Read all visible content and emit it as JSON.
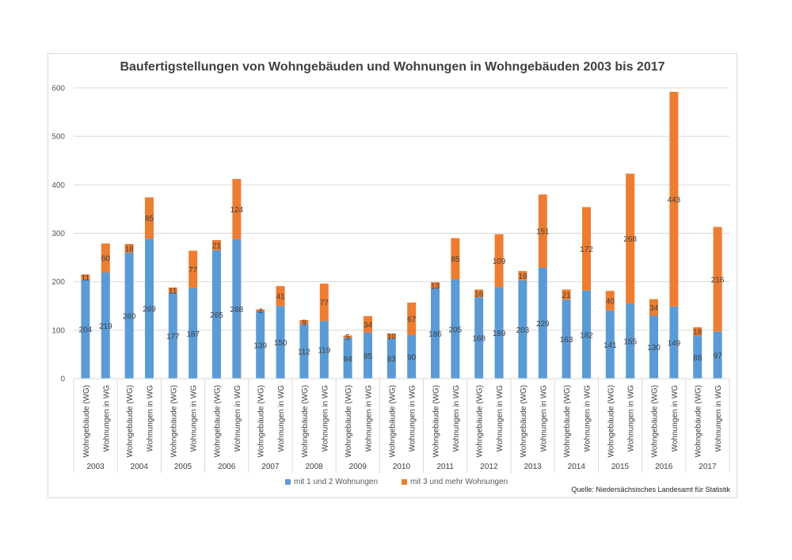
{
  "chart_data": {
    "type": "bar",
    "stacked": true,
    "title": "Baufertigstellungen von Wohngebäuden und Wohnungen in Wohngebäuden 2003 bis 2017",
    "xlabel": "",
    "ylabel": "",
    "ylim": [
      0,
      600
    ],
    "yticks": [
      0,
      100,
      200,
      300,
      400,
      500,
      600
    ],
    "grid": true,
    "legend_position": "bottom",
    "years": [
      "2003",
      "2004",
      "2005",
      "2006",
      "2007",
      "2008",
      "2009",
      "2010",
      "2011",
      "2012",
      "2013",
      "2014",
      "2015",
      "2016",
      "2017"
    ],
    "subcategories": [
      "Wohngebäude (WG)",
      "Wohnungen in WG"
    ],
    "series": [
      {
        "name": "mit 1 und 2 Wohnungen",
        "color": "#5b9bd5",
        "values": [
          204,
          219,
          260,
          289,
          177,
          187,
          265,
          288,
          139,
          150,
          112,
          119,
          84,
          95,
          83,
          90,
          186,
          205,
          168,
          189,
          203,
          229,
          163,
          182,
          141,
          155,
          130,
          149,
          88,
          97
        ]
      },
      {
        "name": "mit 3 und mehr Wohnungen",
        "color": "#ed7d31",
        "values": [
          11,
          60,
          18,
          85,
          11,
          77,
          21,
          124,
          4,
          41,
          9,
          77,
          5,
          34,
          10,
          67,
          13,
          85,
          16,
          109,
          19,
          151,
          21,
          172,
          40,
          268,
          34,
          443,
          18,
          216
        ]
      }
    ],
    "source": "Quelle: Niedersächsisches Landesamt für Statistik"
  }
}
